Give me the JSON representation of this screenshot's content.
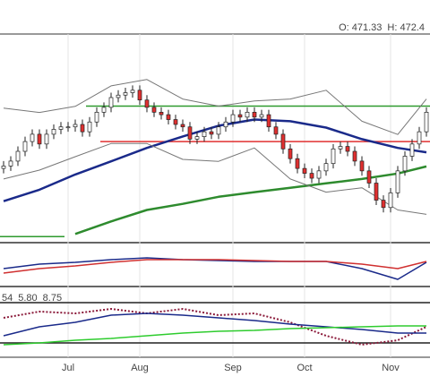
{
  "chart_data": [
    {
      "type": "candlestick",
      "annotations": [
        {
          "text": "O: 471.33",
          "color": "#444444"
        },
        {
          "text": "H: 472.4",
          "color": "#444444"
        }
      ],
      "categories": [
        null,
        null,
        null,
        null,
        null,
        null,
        null,
        null,
        null,
        "Jul",
        null,
        null,
        null,
        null,
        null,
        null,
        null,
        null,
        null,
        "Aug",
        null,
        null,
        null,
        null,
        null,
        null,
        null,
        null,
        null,
        null,
        null,
        null,
        "Sep",
        null,
        null,
        null,
        null,
        null,
        null,
        null,
        null,
        null,
        "Oct",
        null,
        null,
        null,
        null,
        null,
        null,
        null,
        null,
        null,
        null,
        null,
        "Nov",
        null,
        null,
        null,
        null,
        null
      ],
      "open": [
        427,
        428,
        430,
        434,
        438,
        441,
        437,
        441,
        443,
        444,
        444,
        445,
        442,
        446,
        450,
        452,
        456,
        457,
        458,
        459,
        455,
        452,
        450,
        449,
        447,
        445,
        444,
        439,
        440,
        442,
        441,
        444,
        446,
        449,
        448,
        450,
        448,
        449,
        444,
        441,
        435,
        431,
        427,
        425,
        423,
        426,
        429,
        435,
        436,
        434,
        430,
        426,
        421,
        414,
        411,
        417,
        426,
        432,
        437,
        442
      ],
      "high": [
        430,
        432,
        436,
        440,
        443,
        443,
        443,
        445,
        446,
        446,
        447,
        447,
        448,
        452,
        454,
        458,
        459,
        460,
        461,
        461,
        457,
        454,
        452,
        451,
        449,
        447,
        446,
        442,
        444,
        444,
        446,
        448,
        451,
        451,
        452,
        452,
        451,
        451,
        446,
        443,
        437,
        433,
        429,
        427,
        428,
        431,
        437,
        438,
        438,
        436,
        432,
        428,
        423,
        416,
        419,
        428,
        434,
        439,
        444,
        452
      ],
      "low": [
        425,
        426,
        428,
        432,
        436,
        435,
        435,
        439,
        441,
        442,
        442,
        440,
        440,
        444,
        448,
        450,
        454,
        455,
        456,
        453,
        450,
        448,
        447,
        445,
        443,
        442,
        437,
        437,
        438,
        439,
        439,
        442,
        444,
        446,
        446,
        446,
        446,
        442,
        439,
        433,
        429,
        425,
        423,
        421,
        421,
        424,
        427,
        433,
        432,
        428,
        424,
        419,
        412,
        409,
        409,
        415,
        424,
        430,
        435,
        440
      ],
      "close": [
        428,
        430,
        434,
        438,
        441,
        437,
        441,
        443,
        444,
        444,
        445,
        442,
        446,
        450,
        452,
        456,
        457,
        458,
        459,
        455,
        452,
        450,
        449,
        447,
        445,
        444,
        439,
        440,
        442,
        441,
        444,
        446,
        449,
        448,
        450,
        448,
        449,
        444,
        441,
        435,
        431,
        427,
        425,
        423,
        426,
        429,
        435,
        436,
        434,
        430,
        426,
        421,
        414,
        411,
        417,
        426,
        432,
        437,
        442,
        450
      ],
      "up_color": "#ffffff",
      "down_color": "#e03030",
      "ylim": [
        397,
        482
      ],
      "series": [
        {
          "color": "#1a2a8a",
          "width": 2.5,
          "x": [
            0,
            5,
            10,
            15,
            20,
            25,
            30,
            35,
            40,
            45,
            50,
            55,
            59
          ],
          "values": [
            413.6,
            418.3,
            424.5,
            429.9,
            435.4,
            440.1,
            444.5,
            447.0,
            446.3,
            443.7,
            439.0,
            435.4,
            433.6
          ]
        },
        {
          "color": "#2e8b2e",
          "width": 2.5,
          "x": [
            0,
            5,
            10,
            15,
            20,
            25,
            30,
            35,
            40,
            45,
            50,
            55,
            59
          ],
          "values": [
            null,
            null,
            400.2,
            405.3,
            410.0,
            412.5,
            415.4,
            417.3,
            419.1,
            420.9,
            422.7,
            424.9,
            427.8
          ]
        },
        {
          "color": "#777777",
          "width": 1,
          "x": [
            0,
            5,
            10,
            15,
            20,
            25,
            30,
            35,
            40,
            45,
            50,
            55,
            59
          ],
          "values": [
            451.7,
            449.9,
            452.4,
            460.8,
            463.4,
            455.4,
            452.5,
            454.6,
            455.4,
            459.0,
            446.3,
            440.9,
            455.4
          ]
        },
        {
          "color": "#777777",
          "width": 1,
          "x": [
            0,
            5,
            10,
            15,
            20,
            25,
            30,
            35,
            40,
            45,
            50,
            55,
            59
          ],
          "values": [
            422.7,
            426.3,
            431.8,
            437.2,
            437.2,
            430.7,
            429.9,
            435.4,
            422.7,
            417.3,
            419.1,
            410.0,
            408.2
          ]
        }
      ],
      "levels": [
        {
          "value": 452.5,
          "color": "#2e9a2e",
          "x": [
            12,
            59
          ]
        },
        {
          "value": 438.0,
          "color": "#e03030",
          "x": [
            14,
            59
          ]
        },
        {
          "value": 399.1,
          "color": "#2e9a2e",
          "x": [
            0,
            8
          ]
        }
      ]
    },
    {
      "type": "line",
      "ylim": [
        0,
        100
      ],
      "series": [
        {
          "color": "#1a2a8a",
          "width": 1.5,
          "x": [
            0,
            5,
            10,
            15,
            20,
            25,
            30,
            35,
            40,
            45,
            50,
            55,
            59
          ],
          "values": [
            41.9,
            53.5,
            58.1,
            65.1,
            69.8,
            65.1,
            62.8,
            60.5,
            60.5,
            60.5,
            41.9,
            14.0,
            58.1
          ]
        },
        {
          "color": "#d03030",
          "width": 1.5,
          "x": [
            0,
            5,
            10,
            15,
            20,
            25,
            30,
            35,
            40,
            45,
            50,
            55,
            59
          ],
          "values": [
            30.2,
            41.9,
            48.8,
            58.1,
            65.1,
            65.1,
            65.1,
            62.8,
            60.5,
            60.5,
            53.5,
            41.9,
            60.5
          ]
        }
      ]
    },
    {
      "type": "line",
      "annotations": [
        {
          "text": "54",
          "color": "#1a2a8a"
        },
        {
          "text": "5.80",
          "color": "#2eaa2e"
        },
        {
          "text": "8.75",
          "color": "#8b1a3a"
        }
      ],
      "ylim": [
        0,
        100
      ],
      "series": [
        {
          "color": "#8b1a3a",
          "width": 2,
          "dash": true,
          "x": [
            0,
            5,
            10,
            15,
            20,
            25,
            30,
            35,
            40,
            45,
            50,
            55,
            59
          ],
          "values": [
            52.9,
            62.9,
            60,
            67.1,
            60,
            67.1,
            57.1,
            60,
            45.7,
            24.3,
            10,
            17.1,
            38.6
          ]
        },
        {
          "color": "#1a2a8a",
          "width": 1.5,
          "x": [
            0,
            5,
            10,
            15,
            20,
            25,
            30,
            35,
            40,
            45,
            50,
            55,
            59
          ],
          "values": [
            24.3,
            38.6,
            45.7,
            57.1,
            60,
            57.1,
            52.9,
            48.6,
            42.9,
            38.6,
            34.3,
            28.6,
            28.6
          ]
        },
        {
          "color": "#2ecc2e",
          "width": 1.5,
          "x": [
            0,
            5,
            10,
            15,
            20,
            25,
            30,
            35,
            40,
            45,
            50,
            55,
            59
          ],
          "values": [
            10,
            12.9,
            17.1,
            20,
            24.3,
            28.6,
            31.4,
            32.9,
            35.7,
            37.1,
            38.6,
            40,
            40
          ]
        }
      ],
      "levels": [
        {
          "value": 77.1,
          "color": "#222222",
          "x": [
            0,
            59
          ]
        },
        {
          "value": 12.9,
          "color": "#222222",
          "x": [
            0,
            59
          ]
        }
      ]
    }
  ]
}
